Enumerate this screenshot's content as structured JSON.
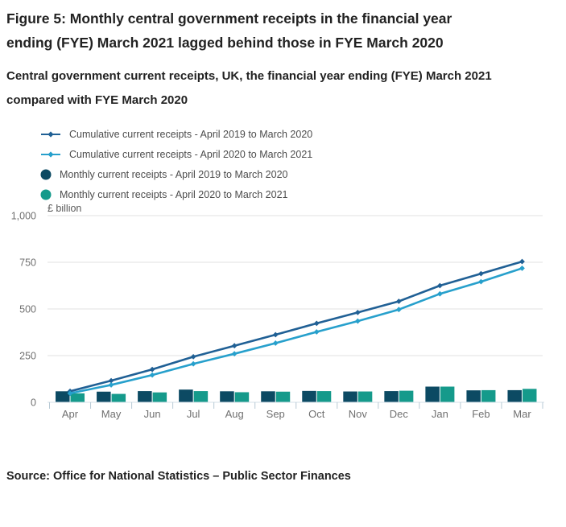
{
  "page": {
    "title": "Figure 5: Monthly central government receipts in the financial year ending (FYE) March 2021 lagged behind those in FYE March 2020",
    "subtitle": "Central government current receipts, UK, the financial year ending (FYE) March 2021 compared with FYE March 2020",
    "source": "Source: Office for National Statistics – Public Sector Finances"
  },
  "chart_data": {
    "type": "combo",
    "unit_label": "£ billion",
    "categories": [
      "Apr",
      "May",
      "Jun",
      "Jul",
      "Aug",
      "Sep",
      "Oct",
      "Nov",
      "Dec",
      "Jan",
      "Feb",
      "Mar"
    ],
    "series": [
      {
        "name": "Cumulative current receipts - April 2019 to March 2020",
        "type": "line",
        "color": "#206095",
        "values": [
          59,
          116,
          176,
          244,
          303,
          362,
          423,
          481,
          541,
          625,
          689,
          754
        ]
      },
      {
        "name": "Cumulative current receipts - April 2020 to March 2021",
        "type": "line",
        "color": "#27a0cc",
        "values": [
          48,
          93,
          146,
          206,
          260,
          317,
          377,
          435,
          497,
          581,
          646,
          718
        ]
      },
      {
        "name": "Monthly current receipts - April 2019 to March 2020",
        "type": "bar",
        "color": "#0c4a63",
        "values": [
          59,
          57,
          60,
          68,
          59,
          59,
          61,
          58,
          60,
          84,
          64,
          65
        ]
      },
      {
        "name": "Monthly current receipts - April 2020 to March 2021",
        "type": "bar",
        "color": "#159a8b",
        "values": [
          48,
          45,
          53,
          60,
          54,
          57,
          60,
          58,
          62,
          84,
          65,
          72
        ]
      }
    ],
    "ylim": [
      0,
      1000
    ],
    "yticks": [
      {
        "value": 0,
        "label": "0"
      },
      {
        "value": 250,
        "label": "250"
      },
      {
        "value": 500,
        "label": "500"
      },
      {
        "value": 750,
        "label": "750"
      },
      {
        "value": 1000,
        "label": "1,000"
      }
    ],
    "grid": true,
    "legend_position": "top-left"
  },
  "colors": {
    "heading_text": "#222222",
    "legend_text": "#4c4c4c",
    "axis_text": "#707070",
    "unit_text": "#595959",
    "gridline": "#e2e2e2",
    "axis_line": "#d6e0e8",
    "tick": "#b7c9d4"
  }
}
